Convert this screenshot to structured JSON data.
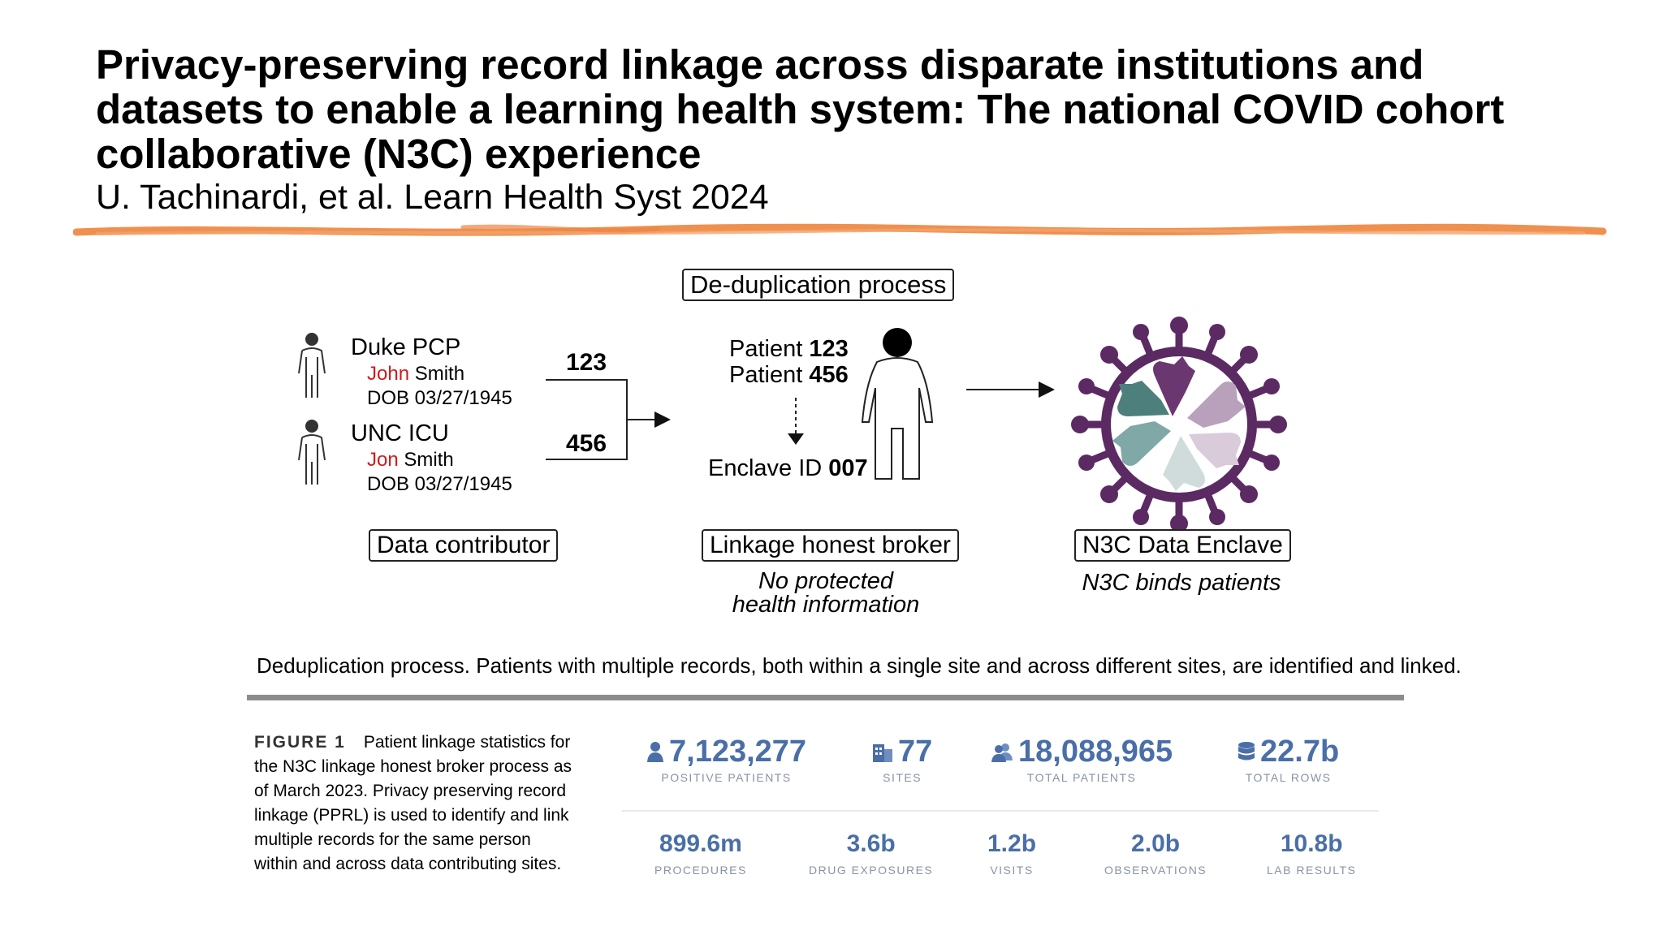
{
  "slide": {
    "title": "Privacy-preserving record linkage across disparate institutions and datasets to enable a learning health system: The national COVID cohort collaborative (N3C) experience",
    "citation": "U. Tachinardi, et al. Learn Health Syst 2024",
    "accent_color": "#f0904f"
  },
  "diagram": {
    "process_label": "De-duplication process",
    "contributors": [
      {
        "site": "Duke PCP",
        "first_name": "John",
        "last_name": "Smith",
        "dob": "DOB 03/27/1945",
        "id": "123"
      },
      {
        "site": "UNC ICU",
        "first_name": "Jon",
        "last_name": "Smith",
        "dob": "DOB 03/27/1945",
        "id": "456"
      }
    ],
    "patient_lines": [
      {
        "prefix": "Patient ",
        "id": "123"
      },
      {
        "prefix": "Patient ",
        "id": "456"
      }
    ],
    "enclave_id": {
      "prefix": "Enclave ID ",
      "id": "007"
    },
    "data_contributor_label": "Data contributor",
    "broker_label": "Linkage honest broker",
    "broker_note": [
      "No protected",
      "health information"
    ],
    "enclave_label": "N3C Data Enclave",
    "enclave_note": "N3C binds patients",
    "virus_color": "#5b2a63",
    "hand_colors": [
      "#6b3770",
      "#b9a1bc",
      "#d9cbda",
      "#cfdcdb",
      "#7fa8a6",
      "#4d7f7c"
    ],
    "caption": "Deduplication process. Patients with multiple records, both within a single site and across different sites, are identified and linked."
  },
  "figure1": {
    "label": "FIGURE 1",
    "caption": "Patient linkage statistics for the N3C linkage honest broker process as of March 2023. Privacy preserving record linkage (PPRL) is used to identify and link multiple records for the same person within and across data contributing sites.",
    "stat_color": "#4a6fa8",
    "top_stats": [
      {
        "icon": "person-icon",
        "value": "7,123,277",
        "label": "POSITIVE PATIENTS"
      },
      {
        "icon": "building-icon",
        "value": "77",
        "label": "SITES"
      },
      {
        "icon": "people-icon",
        "value": "18,088,965",
        "label": "TOTAL PATIENTS"
      },
      {
        "icon": "database-icon",
        "value": "22.7b",
        "label": "TOTAL ROWS"
      }
    ],
    "bottom_stats": [
      {
        "value": "899.6m",
        "label": "PROCEDURES"
      },
      {
        "value": "3.6b",
        "label": "DRUG EXPOSURES"
      },
      {
        "value": "1.2b",
        "label": "VISITS"
      },
      {
        "value": "2.0b",
        "label": "OBSERVATIONS"
      },
      {
        "value": "10.8b",
        "label": "LAB RESULTS"
      }
    ]
  }
}
